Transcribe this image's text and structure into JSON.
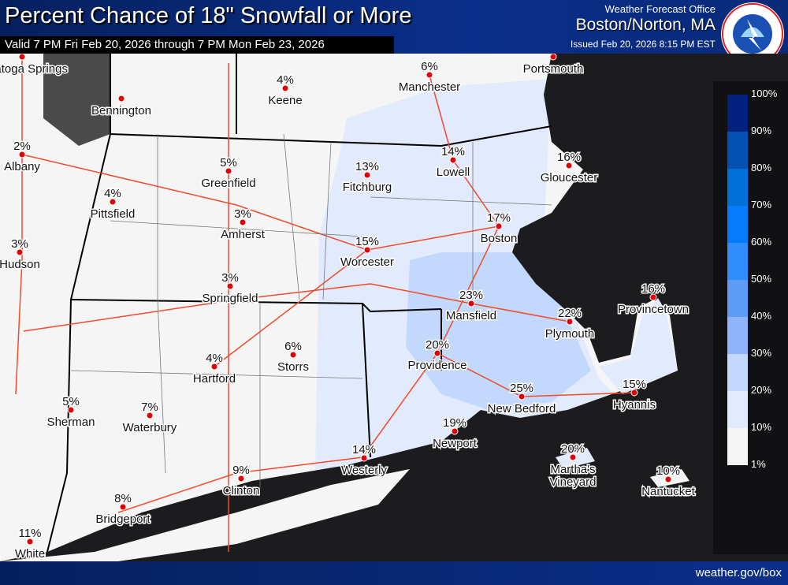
{
  "header": {
    "title": "Percent Chance of 18\" Snowfall or More",
    "valid": "Valid 7 PM Fri Feb 20, 2026 through 7 PM Mon Feb 23, 2026",
    "wfo": "Weather Forecast Office",
    "office": "Boston/Norton, MA",
    "issued": "Issued Feb 20, 2026 8:15 PM EST",
    "logo_text": "NATIONAL WEATHER SERVICE"
  },
  "legend": {
    "labels": [
      "100%",
      "90%",
      "80%",
      "70%",
      "60%",
      "50%",
      "40%",
      "30%",
      "20%",
      "10%",
      "1%"
    ],
    "colors": [
      "#02207e",
      "#0250b0",
      "#0170d8",
      "#057cfb",
      "#2f8dfc",
      "#5d9df9",
      "#8fb4fb",
      "#c2d8fd",
      "#e2ebfd",
      "#f5f5f6"
    ]
  },
  "cities": [
    {
      "name": "Saratoga Springs",
      "pct": ""
    },
    {
      "name": "Bennington",
      "pct": ""
    },
    {
      "name": "Keene",
      "pct": "4%"
    },
    {
      "name": "Manchester",
      "pct": "6%"
    },
    {
      "name": "Portsmouth",
      "pct": ""
    },
    {
      "name": "Albany",
      "pct": "2%"
    },
    {
      "name": "Greenfield",
      "pct": "5%"
    },
    {
      "name": "Fitchburg",
      "pct": "13%"
    },
    {
      "name": "Lowell",
      "pct": "14%"
    },
    {
      "name": "Gloucester",
      "pct": "16%"
    },
    {
      "name": "Pittsfield",
      "pct": "4%"
    },
    {
      "name": "Amherst",
      "pct": "3%"
    },
    {
      "name": "Hudson",
      "pct": "3%"
    },
    {
      "name": "Worcester",
      "pct": "15%"
    },
    {
      "name": "Boston",
      "pct": "17%"
    },
    {
      "name": "Springfield",
      "pct": "3%"
    },
    {
      "name": "Mansfield",
      "pct": "23%"
    },
    {
      "name": "Plymouth",
      "pct": "22%"
    },
    {
      "name": "Provincetown",
      "pct": "16%"
    },
    {
      "name": "Storrs",
      "pct": "6%"
    },
    {
      "name": "Hartford",
      "pct": "4%"
    },
    {
      "name": "Providence",
      "pct": "20%"
    },
    {
      "name": "New Bedford",
      "pct": "25%"
    },
    {
      "name": "Hyannis",
      "pct": "15%"
    },
    {
      "name": "Sherman",
      "pct": "5%"
    },
    {
      "name": "Waterbury",
      "pct": "7%"
    },
    {
      "name": "Newport",
      "pct": "19%"
    },
    {
      "name": "Martha's Vineyard",
      "pct": "20%"
    },
    {
      "name": "Nantucket",
      "pct": "10%"
    },
    {
      "name": "Westerly",
      "pct": "14%"
    },
    {
      "name": "Clinton",
      "pct": "9%"
    },
    {
      "name": "Bridgeport",
      "pct": "8%"
    },
    {
      "name": "White",
      "pct": "11%"
    }
  ],
  "footer": {
    "url": "weather.gov/box"
  }
}
